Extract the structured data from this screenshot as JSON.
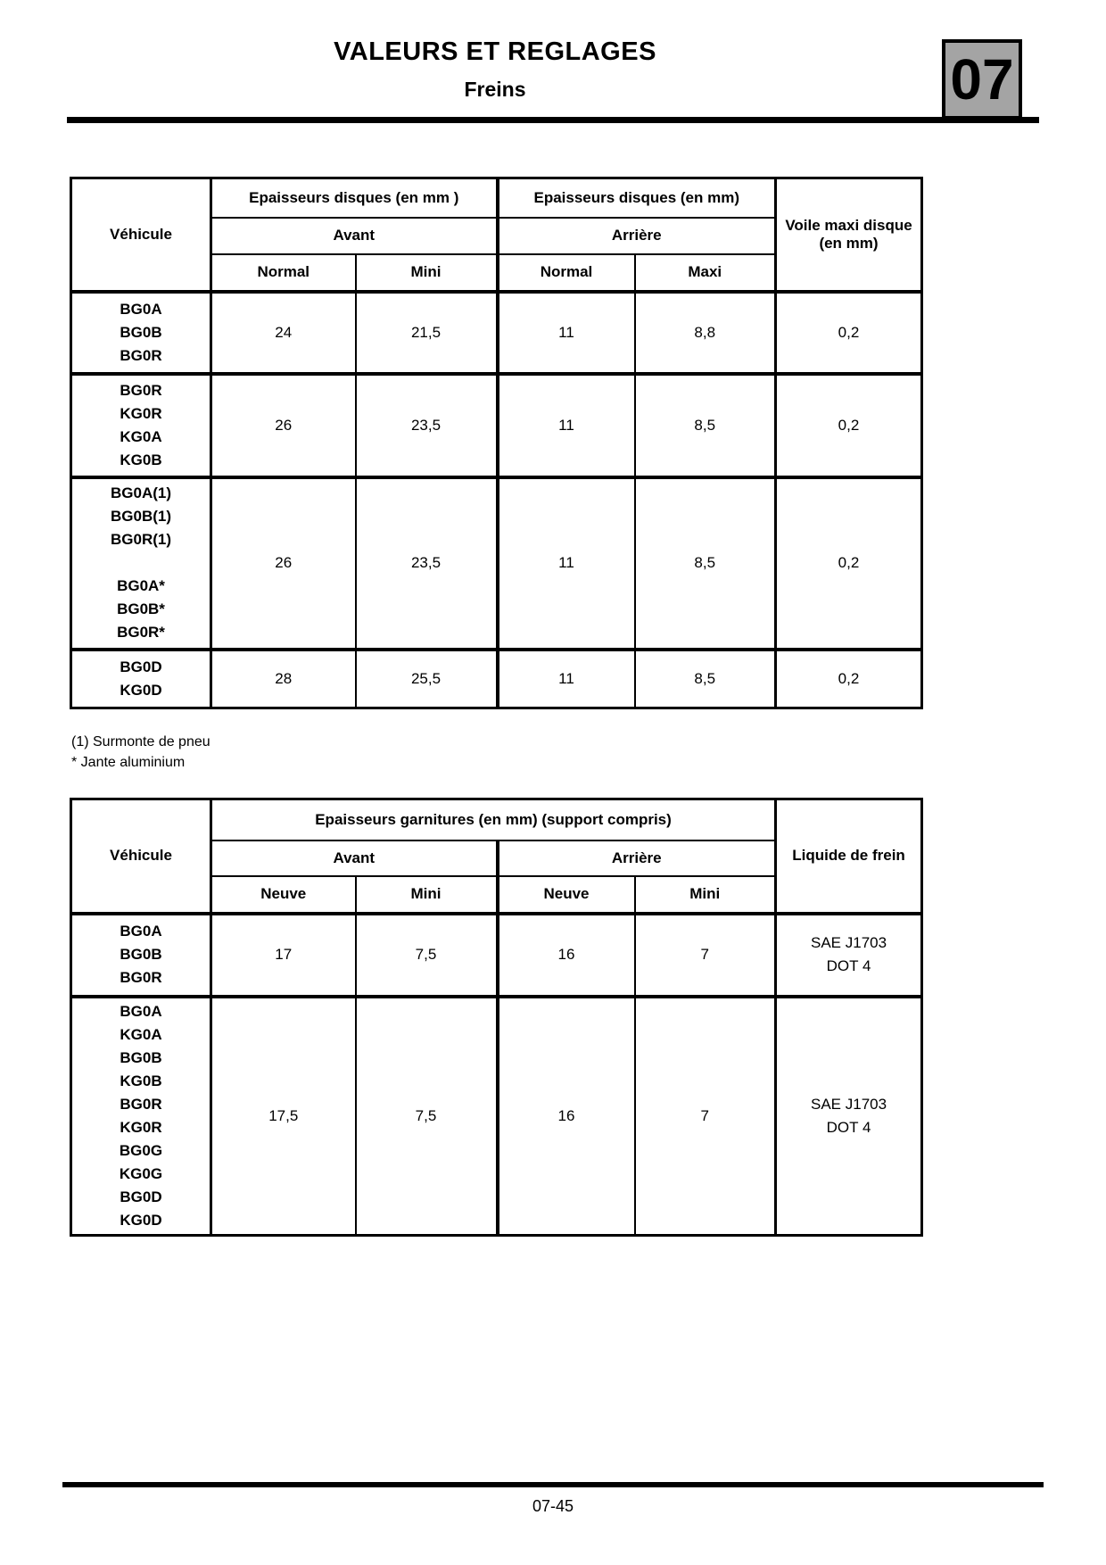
{
  "header": {
    "title": "VALEURS ET REGLAGES",
    "subtitle": "Freins",
    "chapter": "07"
  },
  "footer": {
    "page_number": "07-45"
  },
  "footnotes": {
    "line1": "(1) Surmonte de pneu",
    "line2": "* Jante aluminium"
  },
  "table1": {
    "vehicle_col": "Véhicule",
    "group_avant": "Epaisseurs disques (en mm )",
    "group_arriere": "Epaisseurs disques (en mm)",
    "sub_avant": "Avant",
    "sub_arriere": "Arrière",
    "cols": {
      "c1": "Normal",
      "c2": "Mini",
      "c3": "Normal",
      "c4": "Maxi"
    },
    "voile_col": "Voile maxi disque (en mm)",
    "rows": [
      {
        "vehicles": "BG0A\nBG0B\nBG0R",
        "c1": "24",
        "c2": "21,5",
        "c3": "11",
        "c4": "8,8",
        "c5": "0,2"
      },
      {
        "vehicles": "BG0R\nKG0R\nKG0A\nKG0B",
        "c1": "26",
        "c2": "23,5",
        "c3": "11",
        "c4": "8,5",
        "c5": "0,2"
      },
      {
        "vehicles": "BG0A(1)\nBG0B(1)\nBG0R(1)\n\nBG0A*\nBG0B*\nBG0R*",
        "c1": "26",
        "c2": "23,5",
        "c3": "11",
        "c4": "8,5",
        "c5": "0,2"
      },
      {
        "vehicles": "BG0D\nKG0D",
        "c1": "28",
        "c2": "25,5",
        "c3": "11",
        "c4": "8,5",
        "c5": "0,2"
      }
    ]
  },
  "table2": {
    "vehicle_col": "Véhicule",
    "group": "Epaisseurs garnitures (en mm) (support compris)",
    "sub_avant": "Avant",
    "sub_arriere": "Arrière",
    "cols": {
      "c1": "Neuve",
      "c2": "Mini",
      "c3": "Neuve",
      "c4": "Mini"
    },
    "liquid_col": "Liquide de frein",
    "rows": [
      {
        "vehicles": "BG0A\nBG0B\nBG0R",
        "c1": "17",
        "c2": "7,5",
        "c3": "16",
        "c4": "7",
        "c5": "SAE J1703\nDOT 4"
      },
      {
        "vehicles": "BG0A\nKG0A\nBG0B\nKG0B\nBG0R\nKG0R\nBG0G\nKG0G\nBG0D\nKG0D",
        "c1": "17,5",
        "c2": "7,5",
        "c3": "16",
        "c4": "7",
        "c5": "SAE J1703\nDOT 4"
      }
    ]
  }
}
